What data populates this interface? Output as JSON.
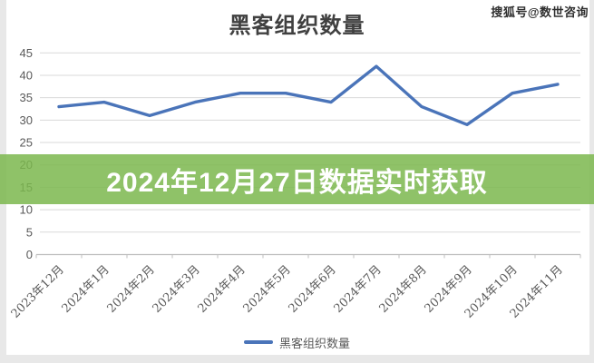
{
  "page": {
    "watermark": "搜狐号@数世咨询",
    "banner": {
      "text": "2024年12月27日数据实时获取",
      "bg_color": "#7bb74e",
      "bg_alpha": 0.85,
      "text_color": "#ffffff"
    },
    "edge_color": "#e8e8e8"
  },
  "chart_data": {
    "type": "line",
    "title": "黑客组织数量",
    "categories": [
      "2023年12月",
      "2024年1月",
      "2024年2月",
      "2024年3月",
      "2024年4月",
      "2024年5月",
      "2024年6月",
      "2024年7月",
      "2024年8月",
      "2024年9月",
      "2024年10月",
      "2024年11月"
    ],
    "series": [
      {
        "name": "黑客组织数量",
        "values": [
          33,
          34,
          31,
          34,
          36,
          36,
          34,
          42,
          33,
          29,
          36,
          38
        ],
        "color": "#4a74b9"
      }
    ],
    "legend_label": "黑客组织数量",
    "legend_position": "bottom",
    "xlabel": "",
    "ylabel": "",
    "ylim": [
      0,
      45
    ],
    "ytick_step": 5,
    "grid": true,
    "grid_color": "#d9d9d9",
    "axis_color": "#bfbfbf",
    "tick_label_color": "#595959"
  }
}
